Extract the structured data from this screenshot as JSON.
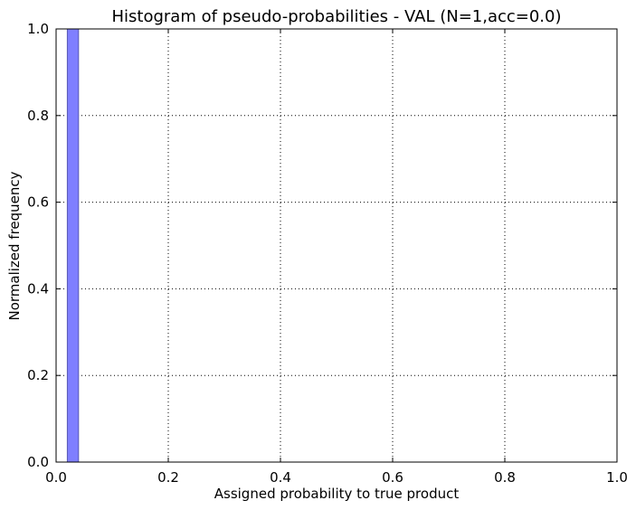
{
  "chart_data": {
    "type": "bar",
    "title": "Histogram of pseudo-probabilities - VAL (N=1,acc=0.0)",
    "xlabel": "Assigned probability to true product",
    "ylabel": "Normalized frequency",
    "xlim": [
      0.0,
      1.0
    ],
    "ylim": [
      0.0,
      1.0
    ],
    "grid": true,
    "xticks": [
      {
        "value": 0.0,
        "label": "0.0"
      },
      {
        "value": 0.2,
        "label": "0.2"
      },
      {
        "value": 0.4,
        "label": "0.4"
      },
      {
        "value": 0.6,
        "label": "0.6"
      },
      {
        "value": 0.8,
        "label": "0.8"
      },
      {
        "value": 1.0,
        "label": "1.0"
      }
    ],
    "yticks": [
      {
        "value": 0.0,
        "label": "0.0"
      },
      {
        "value": 0.2,
        "label": "0.2"
      },
      {
        "value": 0.4,
        "label": "0.4"
      },
      {
        "value": 0.6,
        "label": "0.6"
      },
      {
        "value": 0.8,
        "label": "0.8"
      },
      {
        "value": 1.0,
        "label": "1.0"
      }
    ],
    "bins": [
      {
        "x0": 0.02,
        "x1": 0.04,
        "value": 1.0
      }
    ],
    "bar_color": "#7f7fff",
    "bar_edge_color": "#5959b3"
  }
}
